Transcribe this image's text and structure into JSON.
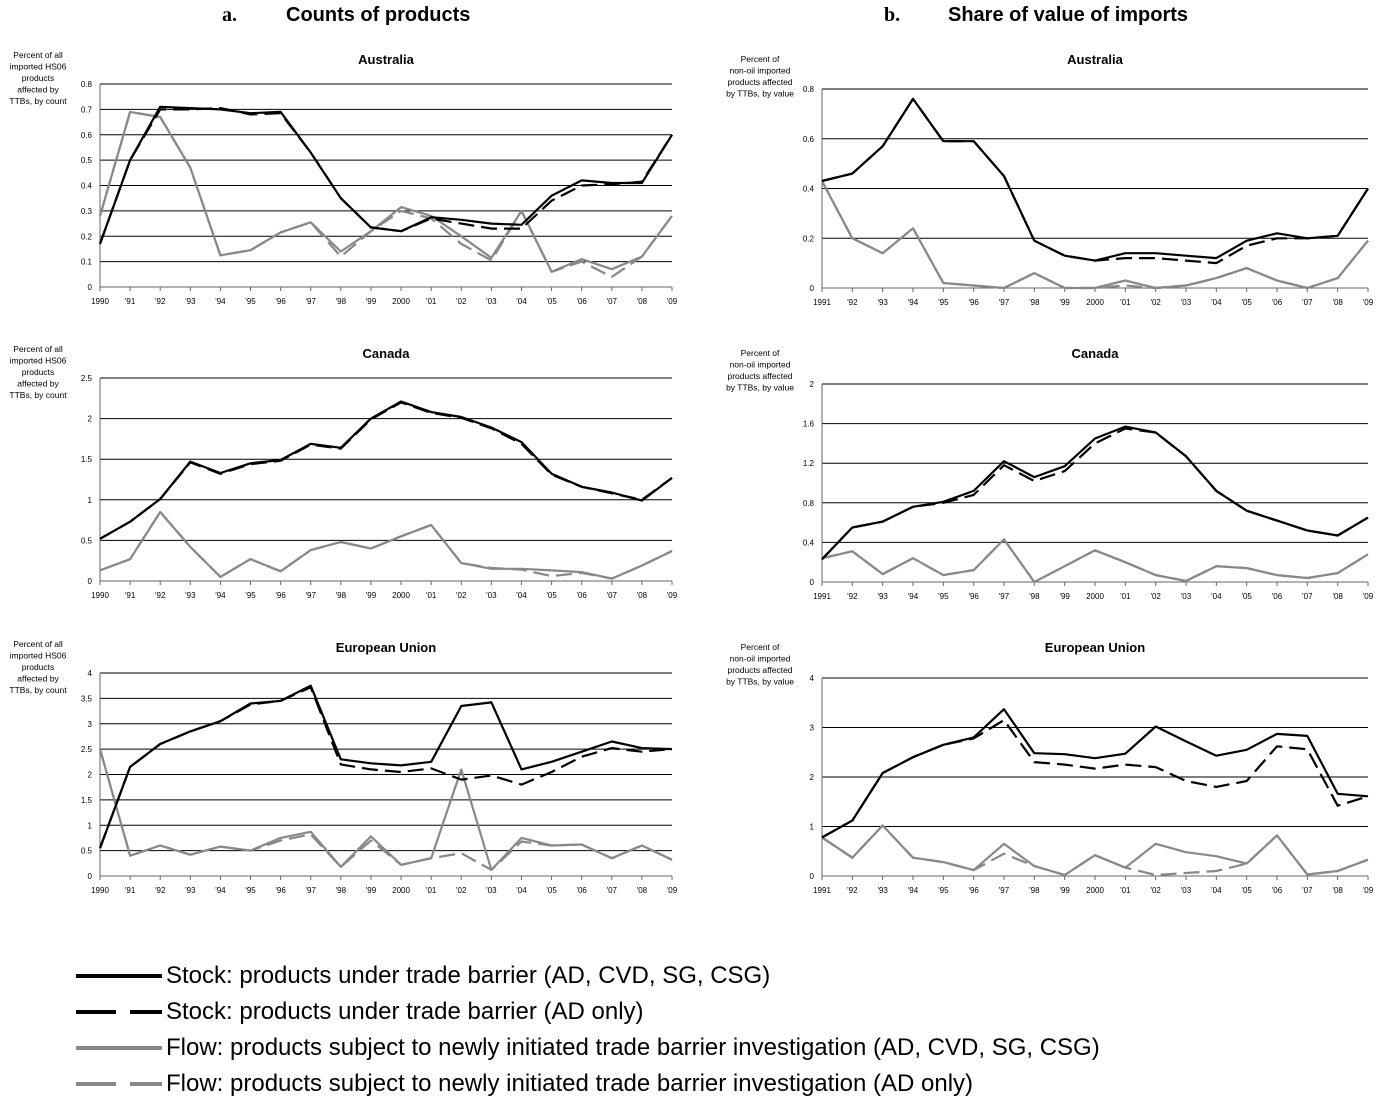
{
  "panels": [
    {
      "letter": "a.",
      "title": "Counts of products"
    },
    {
      "letter": "b.",
      "title": "Share of value of imports"
    }
  ],
  "colors": {
    "stock": "#000000",
    "flow": "#888888",
    "grid": "#000000"
  },
  "legend": [
    {
      "label": "Stock: products under trade barrier (AD, CVD, SG, CSG)",
      "color": "#000000",
      "style": "solid"
    },
    {
      "label": "Stock: products under trade barrier (AD only)",
      "color": "#000000",
      "style": "dashed"
    },
    {
      "label": "Flow: products subject to newly initiated trade barrier investigation (AD, CVD, SG, CSG)",
      "color": "#888888",
      "style": "solid"
    },
    {
      "label": "Flow: products subject to newly initiated trade barrier investigation (AD only)",
      "color": "#888888",
      "style": "dashed"
    }
  ],
  "chart_data": [
    {
      "type": "line",
      "panel": "a",
      "title": "Australia",
      "ylabel": "Percent of all imported HS06 products affected by TTBs, by count",
      "ylim": [
        0,
        0.8
      ],
      "yticks": [
        0,
        0.1,
        0.2,
        0.3,
        0.4,
        0.5,
        0.6,
        0.7,
        0.8
      ],
      "grid": true,
      "categories": [
        "1990",
        "'91",
        "'92",
        "'93",
        "'94",
        "'95",
        "'96",
        "'97",
        "'98",
        "'99",
        "2000",
        "'01",
        "'02",
        "'03",
        "'04",
        "'05",
        "'06",
        "'07",
        "'08",
        "'09"
      ],
      "series": [
        {
          "name": "Stock: products under trade barrier (AD, CVD, SG, CSG)",
          "color": "#000000",
          "dash": false,
          "values": [
            0.17,
            0.5,
            0.71,
            0.705,
            0.7,
            0.685,
            0.69,
            0.53,
            0.35,
            0.235,
            0.22,
            0.275,
            0.265,
            0.25,
            0.245,
            0.36,
            0.42,
            0.41,
            0.41,
            0.6
          ]
        },
        {
          "name": "Stock: products under trade barrier (AD only)",
          "color": "#000000",
          "dash": true,
          "values": [
            0.17,
            0.5,
            0.7,
            0.7,
            0.705,
            0.68,
            0.685,
            0.53,
            0.35,
            0.235,
            0.22,
            0.27,
            0.25,
            0.23,
            0.23,
            0.34,
            0.4,
            0.405,
            0.415,
            0.6
          ]
        },
        {
          "name": "Flow: products subject to newly initiated trade barrier investigation (AD, CVD, SG, CSG)",
          "color": "#888888",
          "dash": false,
          "values": [
            0.28,
            0.69,
            0.67,
            0.47,
            0.125,
            0.145,
            0.215,
            0.255,
            0.14,
            0.22,
            0.315,
            0.28,
            0.2,
            0.115,
            0.3,
            0.06,
            0.11,
            0.07,
            0.12,
            0.28
          ]
        },
        {
          "name": "Flow: products subject to newly initiated trade barrier investigation (AD only)",
          "color": "#888888",
          "dash": true,
          "values": [
            0.28,
            0.69,
            0.67,
            0.47,
            0.125,
            0.145,
            0.215,
            0.255,
            0.12,
            0.22,
            0.3,
            0.27,
            0.17,
            0.105,
            0.3,
            0.06,
            0.1,
            0.04,
            0.12,
            0.28
          ]
        }
      ]
    },
    {
      "type": "line",
      "panel": "a",
      "title": "Canada",
      "ylabel": "Percent of all imported HS06 products affected by TTBs, by count",
      "ylim": [
        0,
        2.5
      ],
      "yticks": [
        0,
        0.5,
        1,
        1.5,
        2,
        2.5
      ],
      "grid": true,
      "categories": [
        "1990",
        "'91",
        "'92",
        "'93",
        "'94",
        "'95",
        "'96",
        "'97",
        "'98",
        "'99",
        "2000",
        "'01",
        "'02",
        "'03",
        "'04",
        "'05",
        "'06",
        "'07",
        "'08",
        "'09"
      ],
      "series": [
        {
          "name": "Stock: products under trade barrier (AD, CVD, SG, CSG)",
          "color": "#000000",
          "dash": false,
          "values": [
            0.52,
            0.73,
            1.01,
            1.47,
            1.33,
            1.45,
            1.49,
            1.69,
            1.64,
            2.0,
            2.21,
            2.08,
            2.02,
            1.89,
            1.71,
            1.32,
            1.16,
            1.09,
            0.99,
            1.27
          ]
        },
        {
          "name": "Stock: products under trade barrier (AD only)",
          "color": "#000000",
          "dash": true,
          "values": [
            0.52,
            0.73,
            1.01,
            1.46,
            1.32,
            1.44,
            1.48,
            1.68,
            1.63,
            1.99,
            2.2,
            2.07,
            2.01,
            1.88,
            1.69,
            1.31,
            1.16,
            1.08,
            1.0,
            1.27
          ]
        },
        {
          "name": "Flow: products subject to newly initiated trade barrier investigation (AD, CVD, SG, CSG)",
          "color": "#888888",
          "dash": false,
          "values": [
            0.13,
            0.27,
            0.85,
            0.42,
            0.05,
            0.27,
            0.12,
            0.38,
            0.48,
            0.4,
            0.55,
            0.69,
            0.22,
            0.15,
            0.15,
            0.13,
            0.11,
            0.03,
            0.19,
            0.37
          ]
        },
        {
          "name": "Flow: products subject to newly initiated trade barrier investigation (AD only)",
          "color": "#888888",
          "dash": true,
          "values": [
            0.13,
            0.27,
            0.85,
            0.42,
            0.05,
            0.27,
            0.12,
            0.38,
            0.48,
            0.4,
            0.55,
            0.69,
            0.22,
            0.16,
            0.14,
            0.06,
            0.1,
            0.03,
            0.19,
            0.37
          ]
        }
      ]
    },
    {
      "type": "line",
      "panel": "a",
      "title": "European Union",
      "ylabel": "Percent of all imported HS06 products affected by TTBs, by count",
      "ylim": [
        0,
        4
      ],
      "yticks": [
        0,
        0.5,
        1,
        1.5,
        2,
        2.5,
        3,
        3.5,
        4
      ],
      "grid": true,
      "categories": [
        "1990",
        "'91",
        "'92",
        "'93",
        "'94",
        "'95",
        "'96",
        "'97",
        "'98",
        "'99",
        "2000",
        "'01",
        "'02",
        "'03",
        "'04",
        "'05",
        "'06",
        "'07",
        "'08",
        "'09"
      ],
      "series": [
        {
          "name": "Stock: products under trade barrier (AD, CVD, SG, CSG)",
          "color": "#000000",
          "dash": false,
          "values": [
            0.55,
            2.15,
            2.6,
            2.85,
            3.05,
            3.4,
            3.45,
            3.75,
            2.3,
            2.22,
            2.18,
            2.25,
            3.35,
            3.42,
            2.1,
            2.25,
            2.45,
            2.65,
            2.52,
            2.5
          ]
        },
        {
          "name": "Stock: products under trade barrier (AD only)",
          "color": "#000000",
          "dash": true,
          "values": [
            0.55,
            2.15,
            2.6,
            2.85,
            3.05,
            3.38,
            3.45,
            3.72,
            2.2,
            2.1,
            2.05,
            2.12,
            1.9,
            1.98,
            1.8,
            2.05,
            2.35,
            2.52,
            2.45,
            2.5
          ]
        },
        {
          "name": "Flow: products subject to newly initiated trade barrier investigation (AD, CVD, SG, CSG)",
          "color": "#888888",
          "dash": false,
          "values": [
            2.5,
            0.4,
            0.6,
            0.42,
            0.58,
            0.5,
            0.75,
            0.87,
            0.18,
            0.78,
            0.22,
            0.35,
            2.1,
            0.12,
            0.75,
            0.6,
            0.62,
            0.35,
            0.6,
            0.32
          ]
        },
        {
          "name": "Flow: products subject to newly initiated trade barrier investigation (AD only)",
          "color": "#888888",
          "dash": true,
          "values": [
            2.5,
            0.4,
            0.6,
            0.42,
            0.58,
            0.5,
            0.7,
            0.82,
            0.18,
            0.7,
            0.22,
            0.35,
            0.45,
            0.12,
            0.68,
            0.6,
            0.62,
            0.35,
            0.6,
            0.32
          ]
        }
      ]
    },
    {
      "type": "line",
      "panel": "b",
      "title": "Australia",
      "ylabel": "Percent of non-oil imported products affected by TTBs, by value",
      "ylim": [
        0,
        0.8
      ],
      "yticks": [
        0,
        0.2,
        0.4,
        0.6,
        0.8
      ],
      "grid": true,
      "categories": [
        "1991",
        "'92",
        "'93",
        "'94",
        "'95",
        "'96",
        "'97",
        "'98",
        "'99",
        "2000",
        "'01",
        "'02",
        "'03",
        "'04",
        "'05",
        "'06",
        "'07",
        "'08",
        "'09"
      ],
      "series": [
        {
          "name": "Stock: products under trade barrier (AD, CVD, SG, CSG)",
          "color": "#000000",
          "dash": false,
          "values": [
            0.43,
            0.46,
            0.57,
            0.76,
            0.59,
            0.59,
            0.45,
            0.19,
            0.13,
            0.11,
            0.14,
            0.14,
            0.13,
            0.12,
            0.19,
            0.22,
            0.2,
            0.21,
            0.4
          ]
        },
        {
          "name": "Stock: products under trade barrier (AD only)",
          "color": "#000000",
          "dash": true,
          "values": [
            0.43,
            0.46,
            0.57,
            0.76,
            0.59,
            0.59,
            0.45,
            0.19,
            0.13,
            0.11,
            0.12,
            0.12,
            0.11,
            0.1,
            0.17,
            0.2,
            0.2,
            0.21,
            0.4
          ]
        },
        {
          "name": "Flow: products subject to newly initiated trade barrier investigation (AD, CVD, SG, CSG)",
          "color": "#888888",
          "dash": false,
          "values": [
            0.43,
            0.2,
            0.14,
            0.24,
            0.02,
            0.01,
            0.0,
            0.06,
            0.0,
            0.0,
            0.03,
            0.0,
            0.01,
            0.04,
            0.08,
            0.03,
            0.0,
            0.04,
            0.19
          ]
        },
        {
          "name": "Flow: products subject to newly initiated trade barrier investigation (AD only)",
          "color": "#888888",
          "dash": true,
          "values": [
            0.43,
            0.2,
            0.14,
            0.24,
            0.02,
            0.01,
            0.0,
            0.06,
            0.0,
            0.0,
            0.01,
            0.0,
            0.01,
            0.04,
            0.08,
            0.03,
            0.0,
            0.04,
            0.19
          ]
        }
      ]
    },
    {
      "type": "line",
      "panel": "b",
      "title": "Canada",
      "ylabel": "Percent of non-oil imported products affected by TTBs, by value",
      "ylim": [
        0,
        2
      ],
      "yticks": [
        0,
        0.4,
        0.8,
        1.2,
        1.6,
        2
      ],
      "grid": true,
      "categories": [
        "1991",
        "'92",
        "'93",
        "'94",
        "'95",
        "'96",
        "'97",
        "'98",
        "'99",
        "2000",
        "'01",
        "'02",
        "'03",
        "'04",
        "'05",
        "'06",
        "'07",
        "'08",
        "'09"
      ],
      "series": [
        {
          "name": "Stock: products under trade barrier (AD, CVD, SG, CSG)",
          "color": "#000000",
          "dash": false,
          "values": [
            0.23,
            0.55,
            0.61,
            0.76,
            0.81,
            0.92,
            1.22,
            1.06,
            1.17,
            1.45,
            1.57,
            1.51,
            1.27,
            0.92,
            0.72,
            0.62,
            0.52,
            0.47,
            0.65
          ]
        },
        {
          "name": "Stock: products under trade barrier (AD only)",
          "color": "#000000",
          "dash": true,
          "values": [
            0.23,
            0.55,
            0.61,
            0.76,
            0.8,
            0.88,
            1.18,
            1.02,
            1.12,
            1.4,
            1.55,
            1.51,
            1.27,
            0.92,
            0.72,
            0.62,
            0.52,
            0.47,
            0.65
          ]
        },
        {
          "name": "Flow: products subject to newly initiated trade barrier investigation (AD, CVD, SG, CSG)",
          "color": "#888888",
          "dash": false,
          "values": [
            0.24,
            0.31,
            0.08,
            0.24,
            0.07,
            0.12,
            0.43,
            0.0,
            0.16,
            0.32,
            0.2,
            0.07,
            0.01,
            0.16,
            0.14,
            0.07,
            0.04,
            0.09,
            0.28
          ]
        },
        {
          "name": "Flow: products subject to newly initiated trade barrier investigation (AD only)",
          "color": "#888888",
          "dash": true,
          "values": [
            0.24,
            0.31,
            0.08,
            0.24,
            0.07,
            0.12,
            0.43,
            0.0,
            0.16,
            0.32,
            0.2,
            0.07,
            0.01,
            0.16,
            0.14,
            0.07,
            0.04,
            0.09,
            0.28
          ]
        }
      ]
    },
    {
      "type": "line",
      "panel": "b",
      "title": "European Union",
      "ylabel": "Percent of non-oil imported products affected by TTBs, by value",
      "ylim": [
        0,
        4
      ],
      "yticks": [
        0,
        1,
        2,
        3,
        4
      ],
      "grid": true,
      "categories": [
        "1991",
        "'92",
        "'93",
        "'94",
        "'95",
        "'96",
        "'97",
        "'98",
        "'99",
        "2000",
        "'01",
        "'02",
        "'03",
        "'04",
        "'05",
        "'06",
        "'07",
        "'08",
        "'09"
      ],
      "series": [
        {
          "name": "Stock: products under trade barrier (AD, CVD, SG, CSG)",
          "color": "#000000",
          "dash": false,
          "values": [
            0.78,
            1.12,
            2.08,
            2.4,
            2.65,
            2.8,
            3.37,
            2.48,
            2.46,
            2.38,
            2.47,
            3.02,
            2.72,
            2.43,
            2.55,
            2.87,
            2.83,
            1.66,
            1.61
          ]
        },
        {
          "name": "Stock: products under trade barrier (AD only)",
          "color": "#000000",
          "dash": true,
          "values": [
            0.78,
            1.12,
            2.08,
            2.4,
            2.65,
            2.78,
            3.15,
            2.3,
            2.25,
            2.17,
            2.25,
            2.2,
            1.92,
            1.8,
            1.92,
            2.62,
            2.56,
            1.42,
            1.61
          ]
        },
        {
          "name": "Flow: products subject to newly initiated trade barrier investigation (AD, CVD, SG, CSG)",
          "color": "#888888",
          "dash": false,
          "values": [
            0.78,
            0.37,
            1.02,
            0.37,
            0.28,
            0.12,
            0.65,
            0.2,
            0.02,
            0.42,
            0.17,
            0.65,
            0.48,
            0.4,
            0.25,
            0.82,
            0.03,
            0.1,
            0.33
          ]
        },
        {
          "name": "Flow: products subject to newly initiated trade barrier investigation (AD only)",
          "color": "#888888",
          "dash": true,
          "values": [
            0.78,
            0.37,
            1.02,
            0.37,
            0.28,
            0.12,
            0.45,
            0.2,
            0.02,
            0.42,
            0.17,
            0.02,
            0.06,
            0.1,
            0.25,
            0.82,
            0.03,
            0.1,
            0.33
          ]
        }
      ]
    }
  ]
}
